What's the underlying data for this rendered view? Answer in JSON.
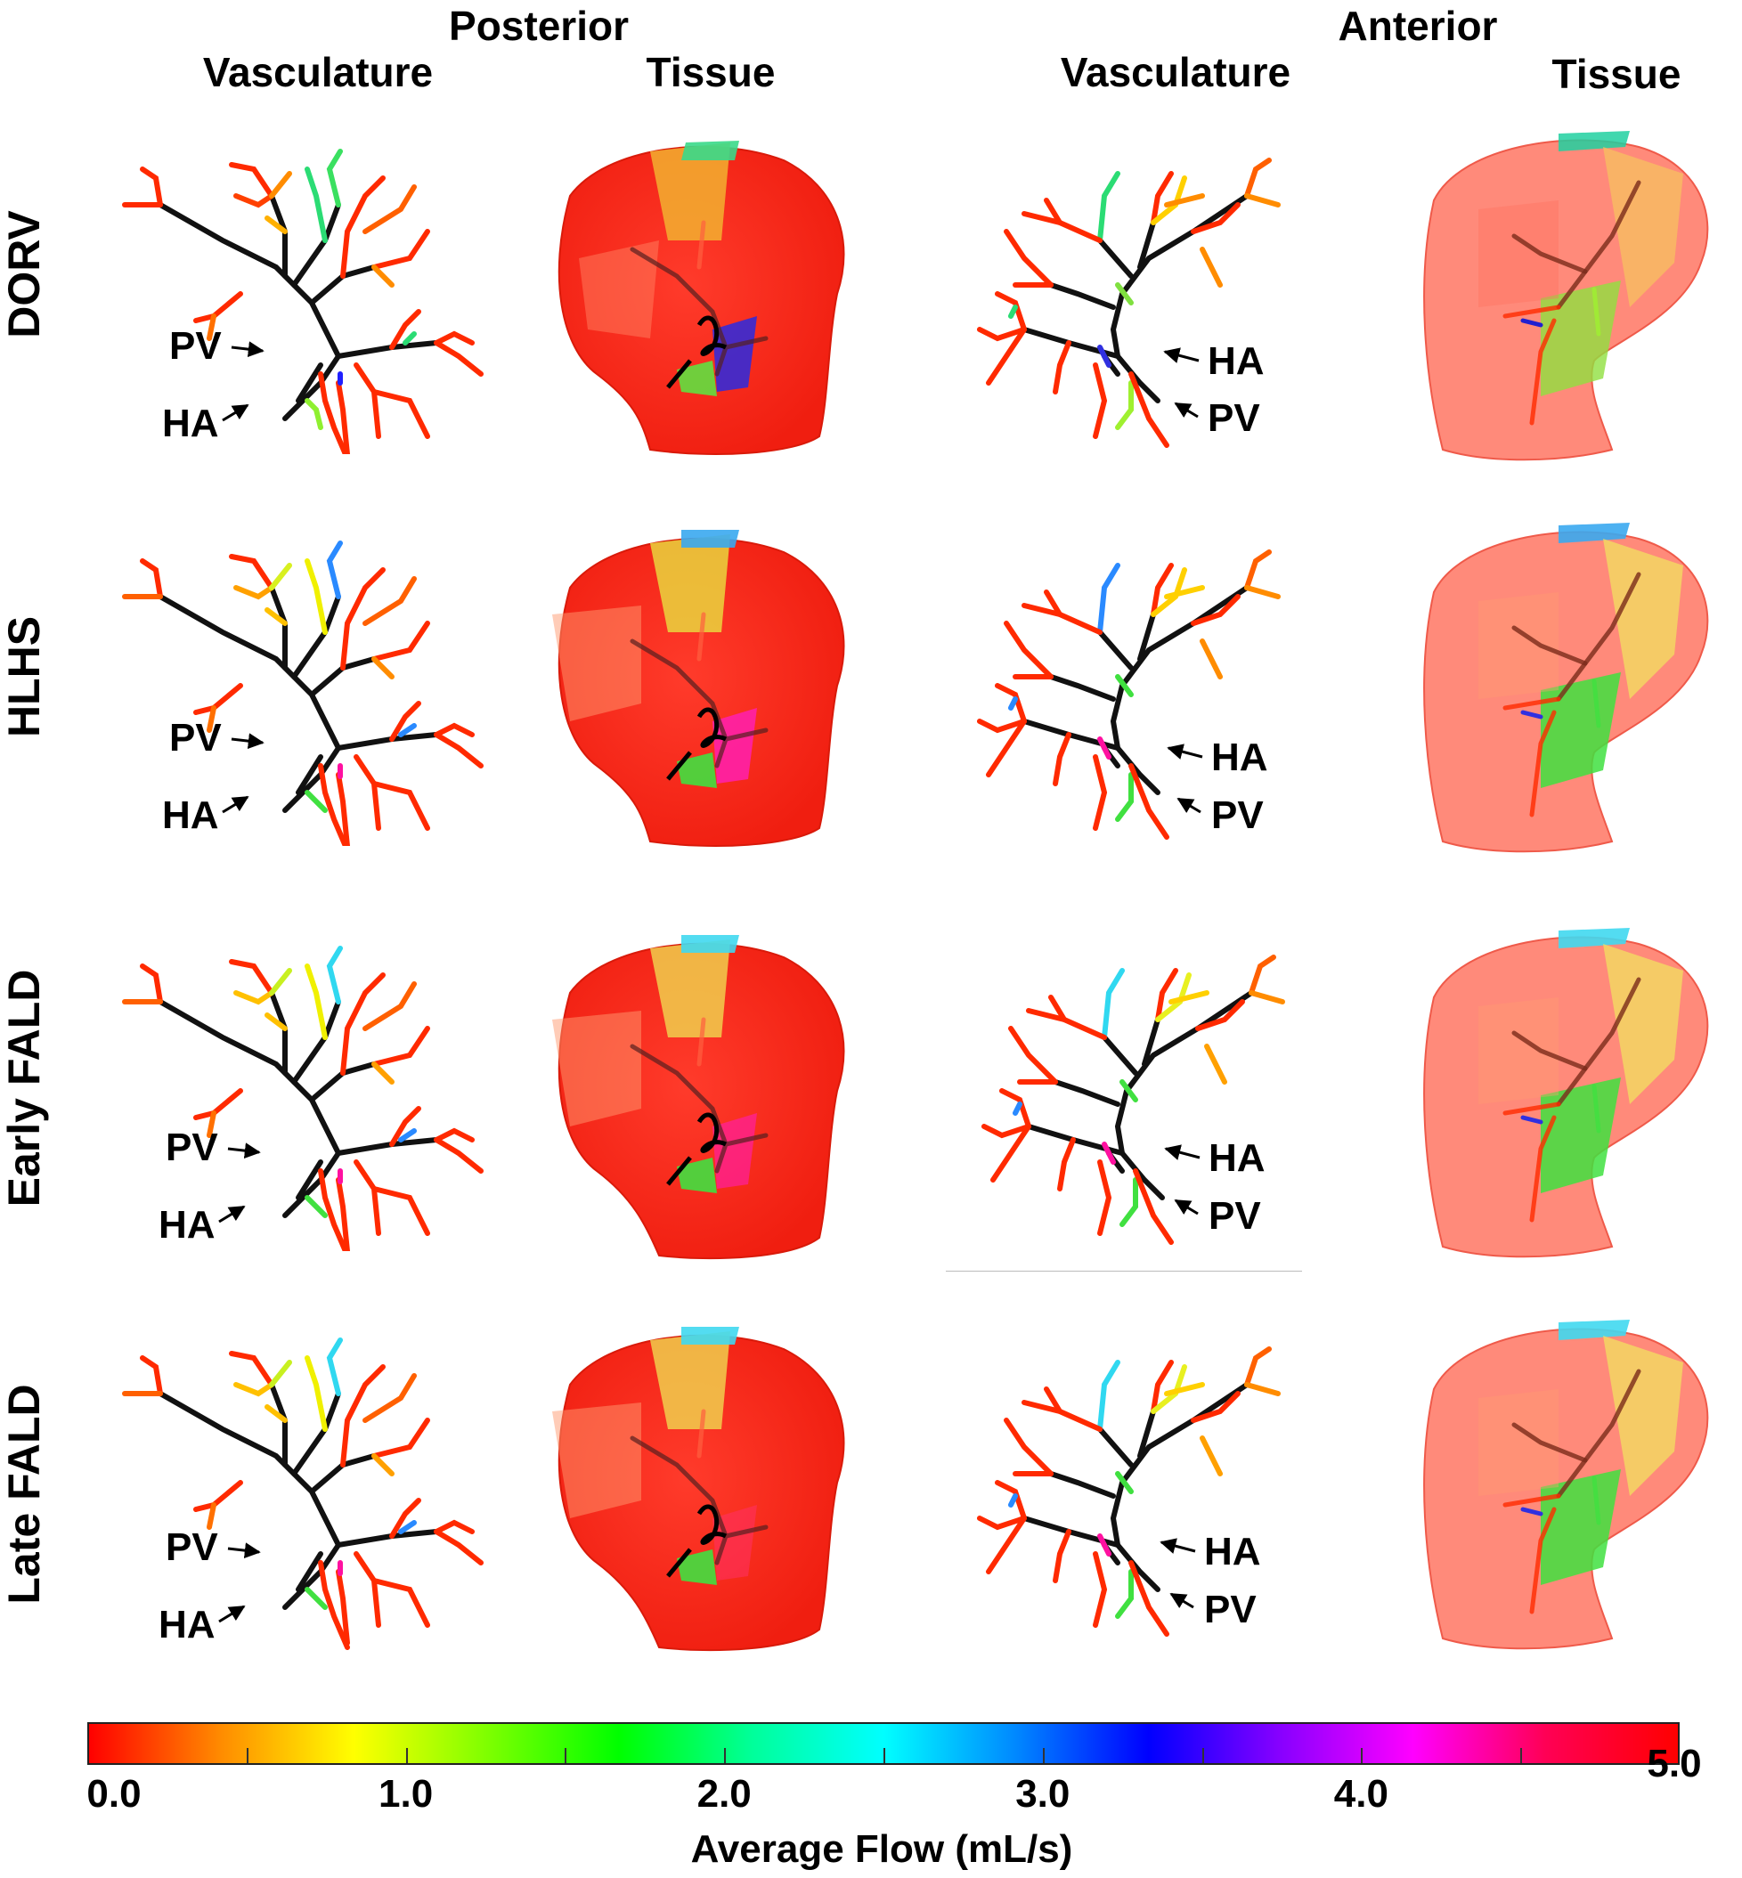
{
  "headers": {
    "posterior": "Posterior",
    "anterior": "Anterior",
    "vasc_left": "Vasculature",
    "tissue_left": "Tissue",
    "vasc_right": "Vasculature",
    "tissue_right": "Tissue"
  },
  "rows": [
    {
      "label": "DORV"
    },
    {
      "label": "HLHS"
    },
    {
      "label": "Early FALD"
    },
    {
      "label": "Late FALD"
    }
  ],
  "vessel_labels": {
    "pv": "PV",
    "ha": "HA"
  },
  "colorbar": {
    "title": "Average Flow (mL/s)",
    "min": 0.0,
    "max": 5.0,
    "tick_labels": [
      "0.0",
      "1.0",
      "2.0",
      "3.0",
      "4.0",
      "5.0"
    ],
    "colors": [
      "#ff0000",
      "#ff8c00",
      "#ffff00",
      "#7fff00",
      "#00ff00",
      "#00ff99",
      "#00ffff",
      "#0088ff",
      "#0000ff",
      "#8800ff",
      "#ff00ff",
      "#ff0055",
      "#ff0000"
    ]
  },
  "colors": {
    "main_vessel": "#111111",
    "tissue_base": "#ff2a1a",
    "tissue_light": "#ff8f80"
  }
}
